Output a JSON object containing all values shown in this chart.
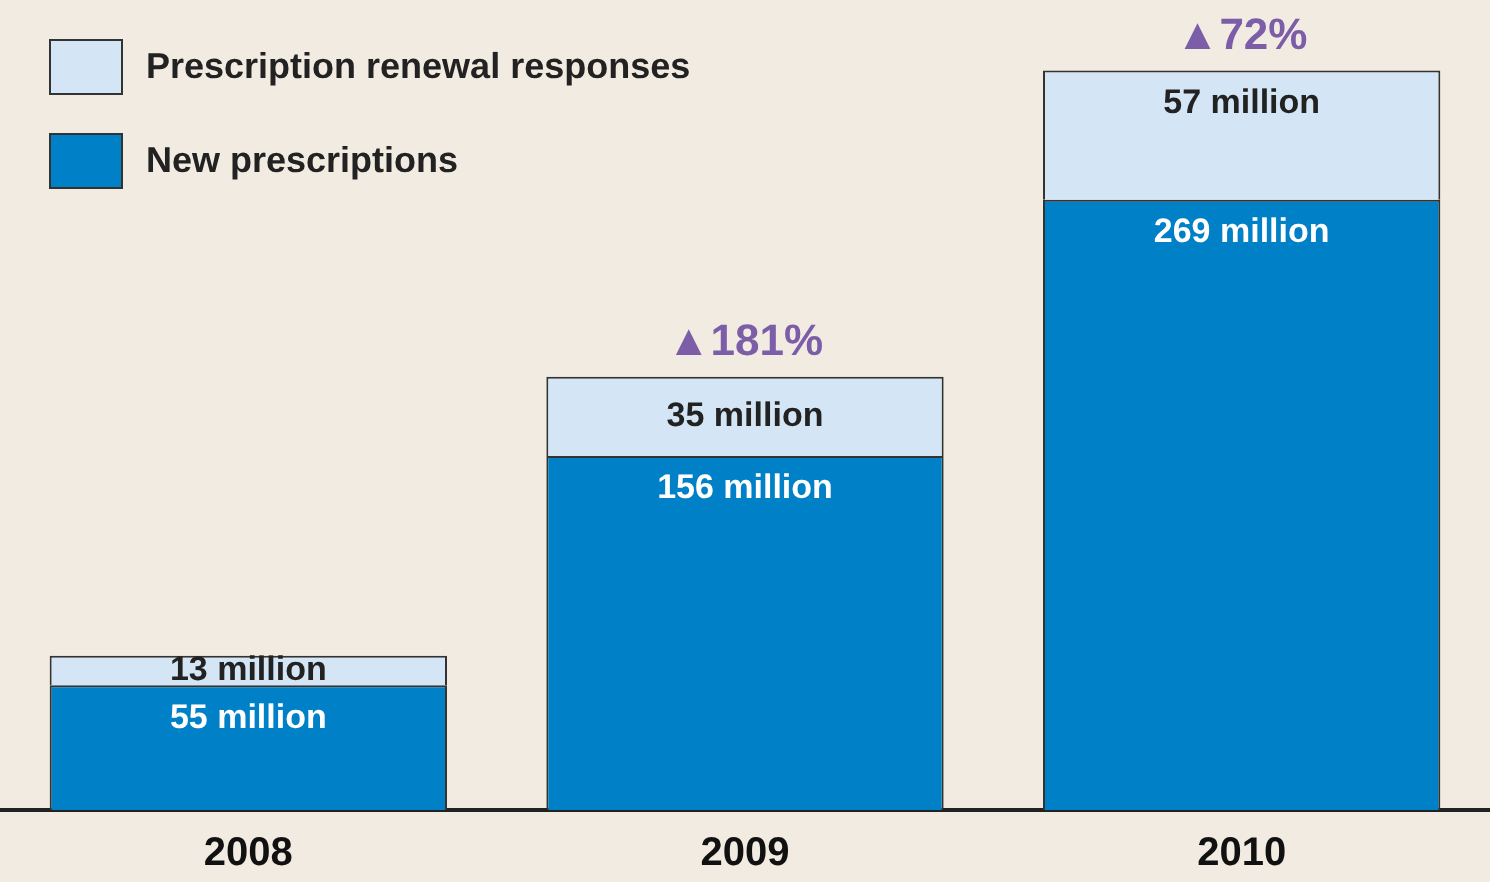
{
  "chart_data": {
    "type": "bar",
    "categories": [
      "2008",
      "2009",
      "2010"
    ],
    "stacked": true,
    "legend": "top left",
    "tick_labels": "x",
    "series": [
      {
        "name": "New prescriptions",
        "color": "#0080c6",
        "values": [
          55,
          156,
          269
        ],
        "value_labels": [
          "55 million",
          "156 million",
          "269 million"
        ]
      },
      {
        "name": "Prescription renewal responses",
        "color": "#d4e6f5",
        "values": [
          13,
          35,
          57
        ],
        "value_labels": [
          "13 million",
          "35 million",
          "57 million"
        ]
      }
    ],
    "annotations": [
      {
        "text": "▲181%",
        "x": "2009",
        "y": 191
      },
      {
        "text": "▲72%",
        "x": "2010",
        "y": 326
      }
    ]
  }
}
